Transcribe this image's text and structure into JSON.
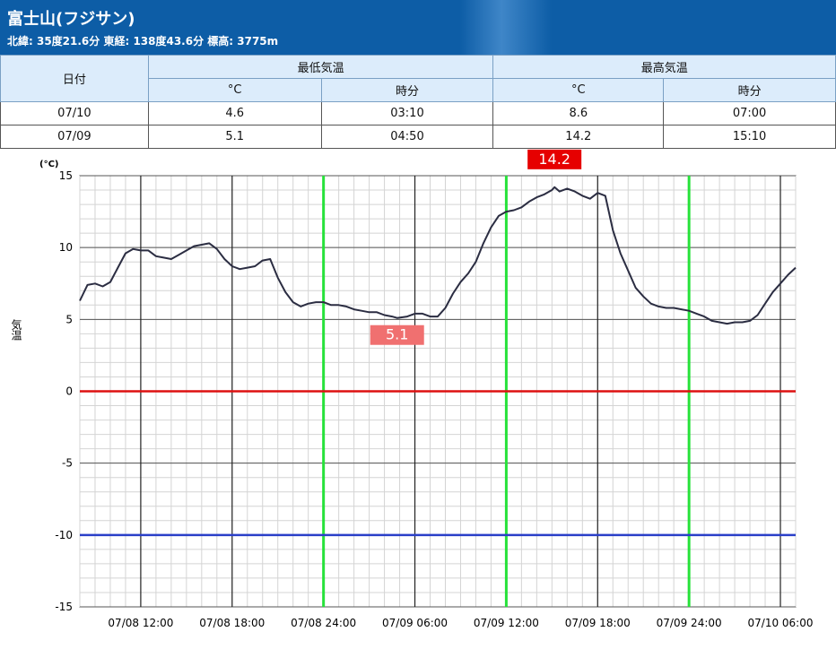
{
  "station": {
    "title": "富士山(フジサン)",
    "info": "北緯: 35度21.6分 東経: 138度43.6分 標高: 3775m"
  },
  "table": {
    "headers": {
      "date": "日付",
      "min_temp": "最低気温",
      "max_temp": "最高気温",
      "celsius": "°C",
      "time": "時分"
    },
    "rows": [
      {
        "date": "07/10",
        "min": "4.6",
        "min_time": "03:10",
        "max": "8.6",
        "max_time": "07:00"
      },
      {
        "date": "07/09",
        "min": "5.1",
        "min_time": "04:50",
        "max": "14.2",
        "max_time": "15:10"
      }
    ]
  },
  "chart_data": {
    "type": "line",
    "ylabel": "気温",
    "yunit": "(°C)",
    "ylim": [
      -15,
      15
    ],
    "yticks": [
      15,
      10,
      5,
      0,
      -5,
      -10,
      -15
    ],
    "x_range": [
      "07/08 08:00",
      "07/10 07:00"
    ],
    "xtick_labels": [
      "07/08 12:00",
      "07/08 18:00",
      "07/08 24:00",
      "07/09 06:00",
      "07/09 12:00",
      "07/09 18:00",
      "07/09 24:00",
      "07/10 06:00"
    ],
    "reference_lines": [
      {
        "value": 0,
        "color": "#dd1111"
      },
      {
        "value": -10,
        "color": "#2a3fc8"
      }
    ],
    "highlight_times": [
      "07/08 24:00",
      "07/09 12:00",
      "07/09 24:00"
    ],
    "annotations": [
      {
        "label": "14.2",
        "value": 14.2,
        "time": "07/09 15:10",
        "color": "#e60000"
      },
      {
        "label": "5.1",
        "value": 5.1,
        "time": "07/09 04:50",
        "color": "#f07070"
      }
    ],
    "series": [
      {
        "color": "#2b2d42",
        "points": [
          [
            "07/08 08:00",
            6.3
          ],
          [
            "07/08 08:30",
            7.4
          ],
          [
            "07/08 09:00",
            7.5
          ],
          [
            "07/08 09:30",
            7.3
          ],
          [
            "07/08 10:00",
            7.6
          ],
          [
            "07/08 10:30",
            8.6
          ],
          [
            "07/08 11:00",
            9.6
          ],
          [
            "07/08 11:30",
            9.9
          ],
          [
            "07/08 12:00",
            9.8
          ],
          [
            "07/08 12:30",
            9.8
          ],
          [
            "07/08 13:00",
            9.4
          ],
          [
            "07/08 13:30",
            9.3
          ],
          [
            "07/08 14:00",
            9.2
          ],
          [
            "07/08 14:30",
            9.5
          ],
          [
            "07/08 15:00",
            9.8
          ],
          [
            "07/08 15:30",
            10.1
          ],
          [
            "07/08 16:00",
            10.2
          ],
          [
            "07/08 16:30",
            10.3
          ],
          [
            "07/08 17:00",
            9.9
          ],
          [
            "07/08 17:30",
            9.2
          ],
          [
            "07/08 18:00",
            8.7
          ],
          [
            "07/08 18:30",
            8.5
          ],
          [
            "07/08 19:00",
            8.6
          ],
          [
            "07/08 19:30",
            8.7
          ],
          [
            "07/08 20:00",
            9.1
          ],
          [
            "07/08 20:30",
            9.2
          ],
          [
            "07/08 21:00",
            7.9
          ],
          [
            "07/08 21:30",
            6.9
          ],
          [
            "07/08 22:00",
            6.2
          ],
          [
            "07/08 22:30",
            5.9
          ],
          [
            "07/08 23:00",
            6.1
          ],
          [
            "07/08 23:30",
            6.2
          ],
          [
            "07/09 00:00",
            6.2
          ],
          [
            "07/09 00:30",
            6.0
          ],
          [
            "07/09 01:00",
            6.0
          ],
          [
            "07/09 01:30",
            5.9
          ],
          [
            "07/09 02:00",
            5.7
          ],
          [
            "07/09 02:30",
            5.6
          ],
          [
            "07/09 03:00",
            5.5
          ],
          [
            "07/09 03:30",
            5.5
          ],
          [
            "07/09 04:00",
            5.3
          ],
          [
            "07/09 04:30",
            5.2
          ],
          [
            "07/09 04:50",
            5.1
          ],
          [
            "07/09 05:30",
            5.2
          ],
          [
            "07/09 06:00",
            5.4
          ],
          [
            "07/09 06:30",
            5.4
          ],
          [
            "07/09 07:00",
            5.2
          ],
          [
            "07/09 07:30",
            5.2
          ],
          [
            "07/09 08:00",
            5.8
          ],
          [
            "07/09 08:30",
            6.8
          ],
          [
            "07/09 09:00",
            7.6
          ],
          [
            "07/09 09:30",
            8.2
          ],
          [
            "07/09 10:00",
            9.0
          ],
          [
            "07/09 10:30",
            10.3
          ],
          [
            "07/09 11:00",
            11.4
          ],
          [
            "07/09 11:30",
            12.2
          ],
          [
            "07/09 12:00",
            12.5
          ],
          [
            "07/09 12:30",
            12.6
          ],
          [
            "07/09 13:00",
            12.8
          ],
          [
            "07/09 13:30",
            13.2
          ],
          [
            "07/09 14:00",
            13.5
          ],
          [
            "07/09 14:30",
            13.7
          ],
          [
            "07/09 15:00",
            14.0
          ],
          [
            "07/09 15:10",
            14.2
          ],
          [
            "07/09 15:30",
            13.9
          ],
          [
            "07/09 16:00",
            14.1
          ],
          [
            "07/09 16:30",
            13.9
          ],
          [
            "07/09 17:00",
            13.6
          ],
          [
            "07/09 17:30",
            13.4
          ],
          [
            "07/09 18:00",
            13.8
          ],
          [
            "07/09 18:30",
            13.6
          ],
          [
            "07/09 19:00",
            11.2
          ],
          [
            "07/09 19:30",
            9.6
          ],
          [
            "07/09 20:00",
            8.4
          ],
          [
            "07/09 20:30",
            7.2
          ],
          [
            "07/09 21:00",
            6.6
          ],
          [
            "07/09 21:30",
            6.1
          ],
          [
            "07/09 22:00",
            5.9
          ],
          [
            "07/09 22:30",
            5.8
          ],
          [
            "07/09 23:00",
            5.8
          ],
          [
            "07/09 23:30",
            5.7
          ],
          [
            "07/10 00:00",
            5.6
          ],
          [
            "07/10 00:30",
            5.4
          ],
          [
            "07/10 01:00",
            5.2
          ],
          [
            "07/10 01:30",
            4.9
          ],
          [
            "07/10 02:00",
            4.8
          ],
          [
            "07/10 02:30",
            4.7
          ],
          [
            "07/10 03:00",
            4.8
          ],
          [
            "07/10 03:30",
            4.8
          ],
          [
            "07/10 04:00",
            4.9
          ],
          [
            "07/10 04:30",
            5.3
          ],
          [
            "07/10 05:00",
            6.1
          ],
          [
            "07/10 05:30",
            6.9
          ],
          [
            "07/10 06:00",
            7.5
          ],
          [
            "07/10 06:30",
            8.1
          ],
          [
            "07/10 07:00",
            8.6
          ]
        ]
      }
    ]
  }
}
